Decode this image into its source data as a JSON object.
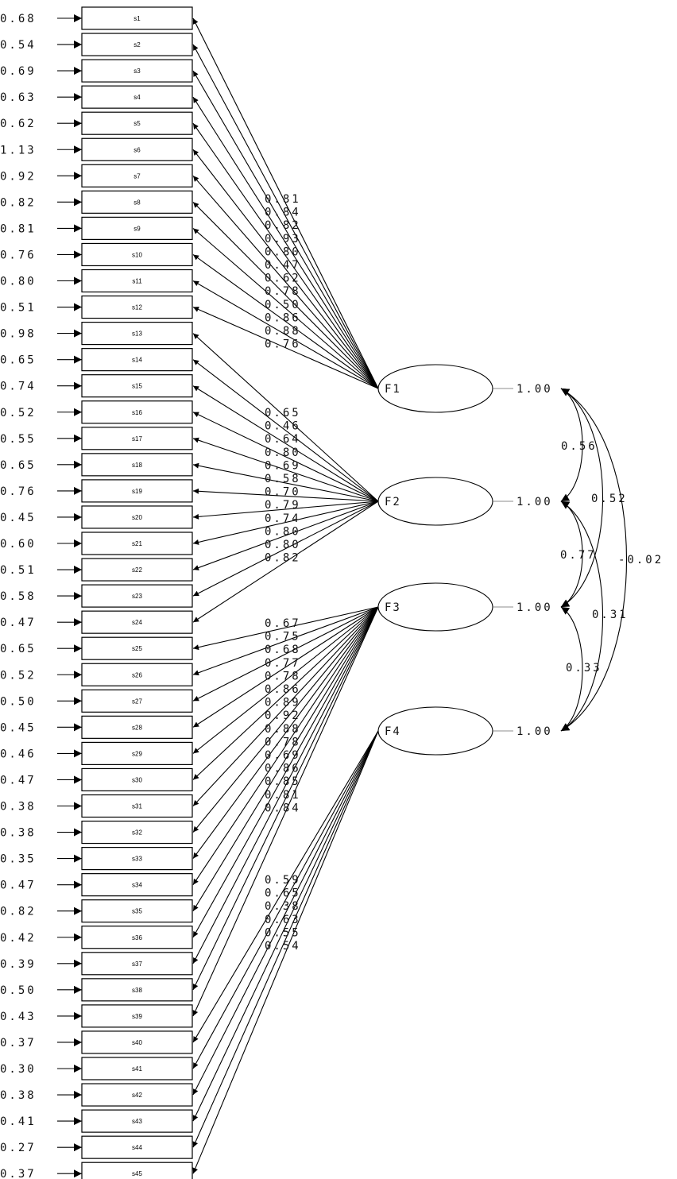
{
  "diagram": {
    "type": "path-diagram",
    "items": [
      {
        "label": "s1",
        "error": "0.68"
      },
      {
        "label": "s2",
        "error": "0.54"
      },
      {
        "label": "s3",
        "error": "0.69"
      },
      {
        "label": "s4",
        "error": "0.63"
      },
      {
        "label": "s5",
        "error": "0.62"
      },
      {
        "label": "s6",
        "error": "1.13"
      },
      {
        "label": "s7",
        "error": "0.92"
      },
      {
        "label": "s8",
        "error": "0.82"
      },
      {
        "label": "s9",
        "error": "0.81"
      },
      {
        "label": "s10",
        "error": "0.76"
      },
      {
        "label": "s11",
        "error": "0.80"
      },
      {
        "label": "s12",
        "error": "0.51"
      },
      {
        "label": "s13",
        "error": "0.98"
      },
      {
        "label": "s14",
        "error": "0.65"
      },
      {
        "label": "s15",
        "error": "0.74"
      },
      {
        "label": "s16",
        "error": "0.52"
      },
      {
        "label": "s17",
        "error": "0.55"
      },
      {
        "label": "s18",
        "error": "0.65"
      },
      {
        "label": "s19",
        "error": "0.76"
      },
      {
        "label": "s20",
        "error": "0.45"
      },
      {
        "label": "s21",
        "error": "0.60"
      },
      {
        "label": "s22",
        "error": "0.51"
      },
      {
        "label": "s23",
        "error": "0.58"
      },
      {
        "label": "s24",
        "error": "0.47"
      },
      {
        "label": "s25",
        "error": "0.65"
      },
      {
        "label": "s26",
        "error": "0.52"
      },
      {
        "label": "s27",
        "error": "0.50"
      },
      {
        "label": "s28",
        "error": "0.45"
      },
      {
        "label": "s29",
        "error": "0.46"
      },
      {
        "label": "s30",
        "error": "0.47"
      },
      {
        "label": "s31",
        "error": "0.38"
      },
      {
        "label": "s32",
        "error": "0.38"
      },
      {
        "label": "s33",
        "error": "0.35"
      },
      {
        "label": "s34",
        "error": "0.47"
      },
      {
        "label": "s35",
        "error": "0.82"
      },
      {
        "label": "s36",
        "error": "0.42"
      },
      {
        "label": "s37",
        "error": "0.39"
      },
      {
        "label": "s38",
        "error": "0.50"
      },
      {
        "label": "s39",
        "error": "0.43"
      },
      {
        "label": "s40",
        "error": "0.37"
      },
      {
        "label": "s41",
        "error": "0.30"
      },
      {
        "label": "s42",
        "error": "0.38"
      },
      {
        "label": "s43",
        "error": "0.41"
      },
      {
        "label": "s44",
        "error": "0.27"
      },
      {
        "label": "s45",
        "error": "0.37"
      }
    ],
    "factors": [
      {
        "name": "F1",
        "variance": "1.00",
        "items": [
          1,
          2,
          3,
          4,
          5,
          6,
          7,
          8,
          9,
          10,
          11,
          12
        ],
        "loadings": [
          "0.81",
          "0.84",
          "0.82",
          "0.93",
          "0.80",
          "0.47",
          "0.62",
          "0.78",
          "0.50",
          "0.86",
          "0.88",
          "0.76"
        ]
      },
      {
        "name": "F2",
        "variance": "1.00",
        "items": [
          13,
          14,
          15,
          16,
          17,
          18,
          19,
          20,
          21,
          22,
          23,
          24
        ],
        "loadings": [
          "0.65",
          "0.46",
          "0.64",
          "0.80",
          "0.69",
          "0.58",
          "0.70",
          "0.79",
          "0.74",
          "0.80",
          "0.80",
          "0.82"
        ]
      },
      {
        "name": "F3",
        "variance": "1.00",
        "items": [
          25,
          26,
          27,
          28,
          29,
          30,
          31,
          32,
          33,
          34,
          35,
          36,
          37,
          38,
          39
        ],
        "loadings": [
          "0.67",
          "0.75",
          "0.68",
          "0.77",
          "0.78",
          "0.86",
          "0.89",
          "0.92",
          "0.88",
          "0.78",
          "0.69",
          "0.86",
          "0.85",
          "0.81",
          "0.84"
        ]
      },
      {
        "name": "F4",
        "variance": "1.00",
        "items": [
          40,
          41,
          42,
          43,
          44,
          45
        ],
        "loadings": [
          "0.59",
          "0.65",
          "0.38",
          "0.63",
          "0.55",
          "0.54"
        ]
      }
    ],
    "correlations": [
      {
        "from": "F1",
        "to": "F2",
        "value": "0.56"
      },
      {
        "from": "F1",
        "to": "F3",
        "value": "0.52"
      },
      {
        "from": "F1",
        "to": "F4",
        "value": "-0.02"
      },
      {
        "from": "F2",
        "to": "F3",
        "value": "0.77"
      },
      {
        "from": "F2",
        "to": "F4",
        "value": "0.31"
      },
      {
        "from": "F3",
        "to": "F4",
        "value": "0.33"
      }
    ]
  }
}
